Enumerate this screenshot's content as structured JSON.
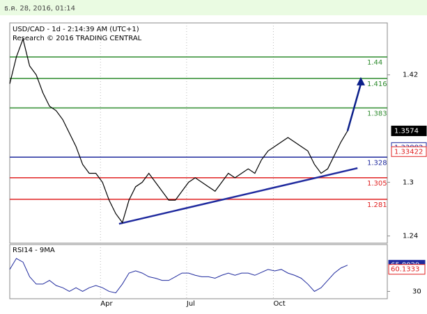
{
  "header": {
    "date": "ธ.ค. 28, 2016, 01:14"
  },
  "chart_data": {
    "type": "line",
    "title": "USD/CAD - 1d - 2:14:39 AM (UTC+1)",
    "subtitle": "Research © 2016 TRADING CENTRAL",
    "x": [
      0,
      1,
      2,
      3,
      4,
      5,
      6,
      7,
      8,
      9,
      10,
      11,
      12,
      13,
      14,
      15,
      16,
      17,
      18,
      19,
      20,
      21,
      22,
      23,
      24,
      25,
      26,
      27,
      28,
      29,
      30,
      31,
      32,
      33,
      34,
      35,
      36,
      37,
      38,
      39,
      40,
      41,
      42,
      43,
      44,
      45,
      46,
      47,
      48,
      49,
      50,
      51
    ],
    "series": [
      {
        "name": "USD/CAD",
        "color": "#000000",
        "values": [
          1.41,
          1.44,
          1.46,
          1.43,
          1.42,
          1.4,
          1.385,
          1.38,
          1.37,
          1.355,
          1.34,
          1.32,
          1.31,
          1.31,
          1.3,
          1.28,
          1.265,
          1.255,
          1.28,
          1.295,
          1.3,
          1.31,
          1.3,
          1.29,
          1.28,
          1.28,
          1.29,
          1.3,
          1.305,
          1.3,
          1.295,
          1.29,
          1.3,
          1.31,
          1.305,
          1.31,
          1.315,
          1.31,
          1.325,
          1.335,
          1.34,
          1.345,
          1.35,
          1.345,
          1.34,
          1.335,
          1.32,
          1.31,
          1.315,
          1.33,
          1.345,
          1.3574
        ]
      }
    ],
    "xlim": [
      0,
      57
    ],
    "xticks": [
      {
        "value": 13.7,
        "label": "Apr"
      },
      {
        "value": 26.7,
        "label": "Jul"
      },
      {
        "value": 39.8,
        "label": "Oct"
      }
    ],
    "ylim": [
      1.232,
      1.478
    ],
    "yticks": [
      1.42,
      1.3,
      1.24
    ],
    "levels": [
      {
        "value": 1.44,
        "color": "#2e8b2e"
      },
      {
        "value": 1.416,
        "color": "#2e8b2e"
      },
      {
        "value": 1.383,
        "color": "#2e8b2e"
      },
      {
        "value": 1.328,
        "color": "#1f2a9e"
      },
      {
        "value": 1.305,
        "color": "#e02020"
      },
      {
        "value": 1.281,
        "color": "#e02020"
      }
    ],
    "price_markers": [
      {
        "value": 1.3574,
        "color": "#000000"
      },
      {
        "value": 1.33882,
        "color": "#1f2a9e"
      },
      {
        "value": 1.33422,
        "color": "#e02020"
      }
    ],
    "trendline": {
      "x": [
        16.5,
        52.5
      ],
      "values": [
        1.2536,
        1.3158
      ],
      "color": "#1f2a9e"
    },
    "projection": {
      "x": [
        51,
        53
      ],
      "values": [
        1.3574,
        1.416
      ],
      "color": "#0b1f8a"
    },
    "rsi": {
      "title": "RSI14 - 9MA",
      "color": "#1f2a9e",
      "values": [
        60,
        75,
        70,
        50,
        40,
        40,
        45,
        38,
        35,
        30,
        35,
        30,
        35,
        38,
        35,
        30,
        28,
        40,
        55,
        58,
        55,
        50,
        48,
        45,
        45,
        50,
        55,
        55,
        52,
        50,
        50,
        48,
        52,
        55,
        52,
        55,
        55,
        52,
        56,
        60,
        58,
        60,
        55,
        52,
        48,
        40,
        30,
        35,
        45,
        55,
        62,
        65.8029
      ],
      "ylim": [
        20,
        94
      ],
      "yticks": [
        30
      ],
      "markers": [
        {
          "value": 65.8029,
          "color": "#1f2a9e"
        },
        {
          "value": 60.1333,
          "color": "#e02020"
        }
      ]
    }
  }
}
